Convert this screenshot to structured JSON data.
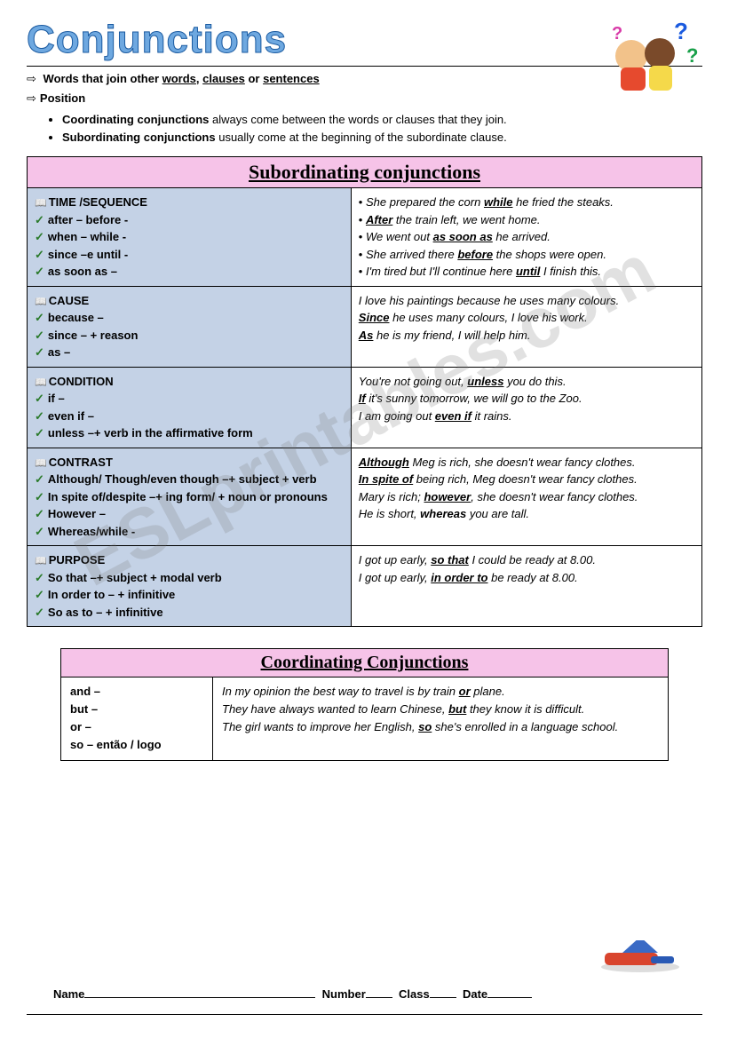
{
  "title": "Conjunctions",
  "intro": {
    "definition_prefix": "Words that join other ",
    "w1": "words",
    "sep1": ", ",
    "w2": "clauses",
    "sep2": " or ",
    "w3": "sentences",
    "position_label": "Position",
    "bullets": [
      {
        "bold": "Coordinating conjunctions",
        "rest": " always come between the words or clauses that they join."
      },
      {
        "bold": "Subordinating conjunctions",
        "rest": " usually come at the beginning of the subordinate clause."
      }
    ]
  },
  "watermark": "ESLprintables.com",
  "subord": {
    "heading": "Subordinating conjunctions",
    "rows": [
      {
        "cat": "TIME /SEQUENCE",
        "items": [
          "after –           before -",
          "when –         while -",
          "since –e          until -",
          "as soon as –"
        ],
        "examples_html": [
          "She prepared the corn <span class='bu'>while</span> he fried the steaks.",
          "<span class='bu'>After</span> the train left, we went home.",
          "We went out <span class='bu'>as soon as</span> he arrived.",
          "She arrived there <span class='bu'>before</span> the shops were open.",
          "I'm tired but I'll continue here <span class='bu'>until</span> I finish this."
        ],
        "ex_bulleted": true
      },
      {
        "cat": "CAUSE",
        "items": [
          "because –",
          "since –           + reason",
          "as –"
        ],
        "examples_html": [
          "I love his paintings because he uses many colours.",
          "<span class='bu'>Since</span> he uses many colours, I love his work.",
          "<span class='bu'>As</span> he is my friend, I will help him."
        ],
        "ex_bulleted": false
      },
      {
        "cat": "CONDITION",
        "items": [
          "if –",
          "even if –",
          "unless –+ verb in the affirmative form"
        ],
        "examples_html": [
          "You're not going out, <span class='bu'>unless</span> you do this.",
          "<span class='bu'>If</span> it's sunny tomorrow, we will go to the Zoo.",
          "I am going out <span class='bu'>even if</span> it rains."
        ],
        "ex_bulleted": false
      },
      {
        "cat": "CONTRAST",
        "items": [
          "Although/ Though/even though –+ subject + verb",
          "In spite of/despite –+ ing form/ + noun or pronouns",
          "However –",
          "Whereas/while -"
        ],
        "examples_html": [
          "<span class='bu'>Although</span> Meg is rich, she doesn't wear fancy clothes.",
          "<span class='bu'>In spite of</span> being rich, Meg doesn't wear fancy clothes.",
          "Mary is rich; <span class='bu'>however</span>, she doesn't wear fancy clothes.",
          "He is short, <span class='b'>whereas</span> you are tall."
        ],
        "ex_bulleted": false
      },
      {
        "cat": "PURPOSE",
        "items": [
          "So that –+ subject + modal verb",
          "In order to –  + infinitive",
          "So as to –  + infinitive"
        ],
        "examples_html": [
          "I got up early, <span class='bu'>so that</span> I could be ready at 8.00.",
          "I got up early, <span class='bu'>in order to</span> be ready at 8.00."
        ],
        "ex_bulleted": false
      }
    ]
  },
  "coord": {
    "heading": "Coordinating Conjunctions",
    "left_items": [
      "and –",
      "but –",
      "or –",
      "so – então / logo"
    ],
    "examples_html": [
      "In my opinion the best way to travel is by train <span class='bu'>or</span> plane.",
      "They have always wanted to learn Chinese, <span class='bu'>but</span> they know it is difficult.",
      "The girl wants to improve her English, <span class='bu'>so</span> she's enrolled in a language school."
    ]
  },
  "footer": {
    "name": "Name",
    "number": "Number",
    "class": "Class",
    "date": "Date"
  },
  "colors": {
    "title_fill": "#6ea8e0",
    "title_stroke": "#1a5aa0",
    "header_bg": "#f6c3e8",
    "left_cell_bg": "#c4d2e6",
    "border": "#000000",
    "watermark": "rgba(120,120,120,0.22)"
  }
}
